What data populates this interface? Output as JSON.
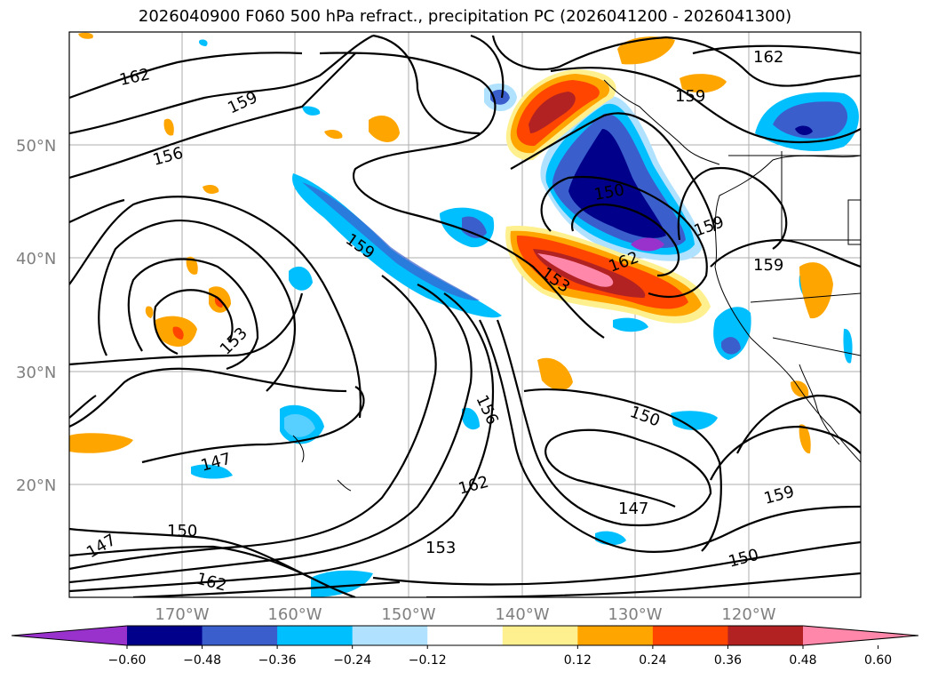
{
  "title": "2026040900 F060 500 hPa refract., precipitation PC (2026041200 - 2026041300)",
  "lat_labels": [
    "50°N",
    "40°N",
    "30°N",
    "20°N"
  ],
  "lon_labels": [
    "170°W",
    "160°W",
    "150°W",
    "140°W",
    "130°W",
    "120°W"
  ],
  "colorbar": {
    "colors": [
      "#9932cc",
      "#00008b",
      "#3a5fcd",
      "#00bfff",
      "#b0e2ff",
      "#ffffff",
      "#fff08f",
      "#ffa500",
      "#ff4500",
      "#b22222",
      "#ff88aa"
    ],
    "tick_labels": [
      "−0.60",
      "−0.48",
      "−0.36",
      "−0.24",
      "−0.12",
      "0.12",
      "0.24",
      "0.36",
      "0.48",
      "0.60"
    ]
  },
  "contour_labels": [
    "162",
    "159",
    "156",
    "159",
    "156",
    "153",
    "147",
    "150",
    "147",
    "150",
    "162",
    "153",
    "162",
    "159",
    "159",
    "153",
    "162",
    "162",
    "150",
    "159",
    "147",
    "150",
    "159"
  ]
}
